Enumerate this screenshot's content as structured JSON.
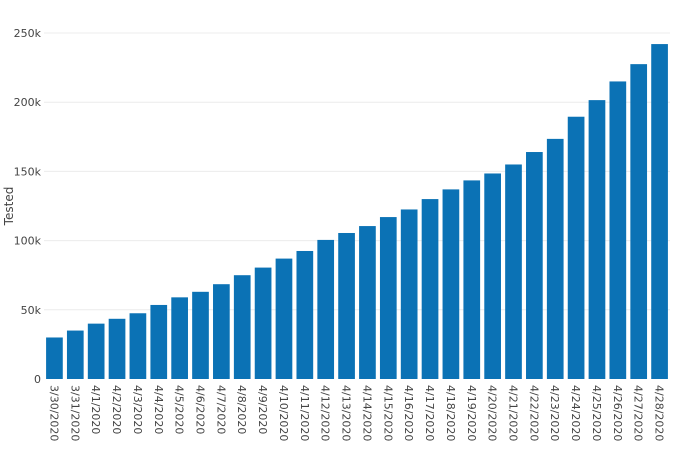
{
  "chart_data": {
    "type": "bar",
    "ylabel": "Tested",
    "xlabel": "",
    "ylim": [
      0,
      250000
    ],
    "y_ticks": [
      0,
      50000,
      100000,
      150000,
      200000,
      250000
    ],
    "y_tick_labels": [
      "0",
      "50k",
      "100k",
      "150k",
      "200k",
      "250k"
    ],
    "grid": true,
    "bar_color": "#0b72b5",
    "categories": [
      "3/30/2020",
      "3/31/2020",
      "4/1/2020",
      "4/2/2020",
      "4/3/2020",
      "4/4/2020",
      "4/5/2020",
      "4/6/2020",
      "4/7/2020",
      "4/8/2020",
      "4/9/2020",
      "4/10/2020",
      "4/11/2020",
      "4/12/2020",
      "4/13/2020",
      "4/14/2020",
      "4/15/2020",
      "4/16/2020",
      "4/17/2020",
      "4/18/2020",
      "4/19/2020",
      "4/20/2020",
      "4/21/2020",
      "4/22/2020",
      "4/23/2020",
      "4/24/2020",
      "4/25/2020",
      "4/26/2020",
      "4/27/2020",
      "4/28/2020"
    ],
    "values": [
      30000,
      35000,
      40000,
      43500,
      47500,
      53500,
      59000,
      63000,
      68500,
      75000,
      80500,
      87000,
      92500,
      100500,
      105500,
      110500,
      117000,
      122500,
      130000,
      137000,
      143500,
      148500,
      155000,
      164000,
      173500,
      189500,
      201500,
      215000,
      227500,
      242000
    ]
  }
}
